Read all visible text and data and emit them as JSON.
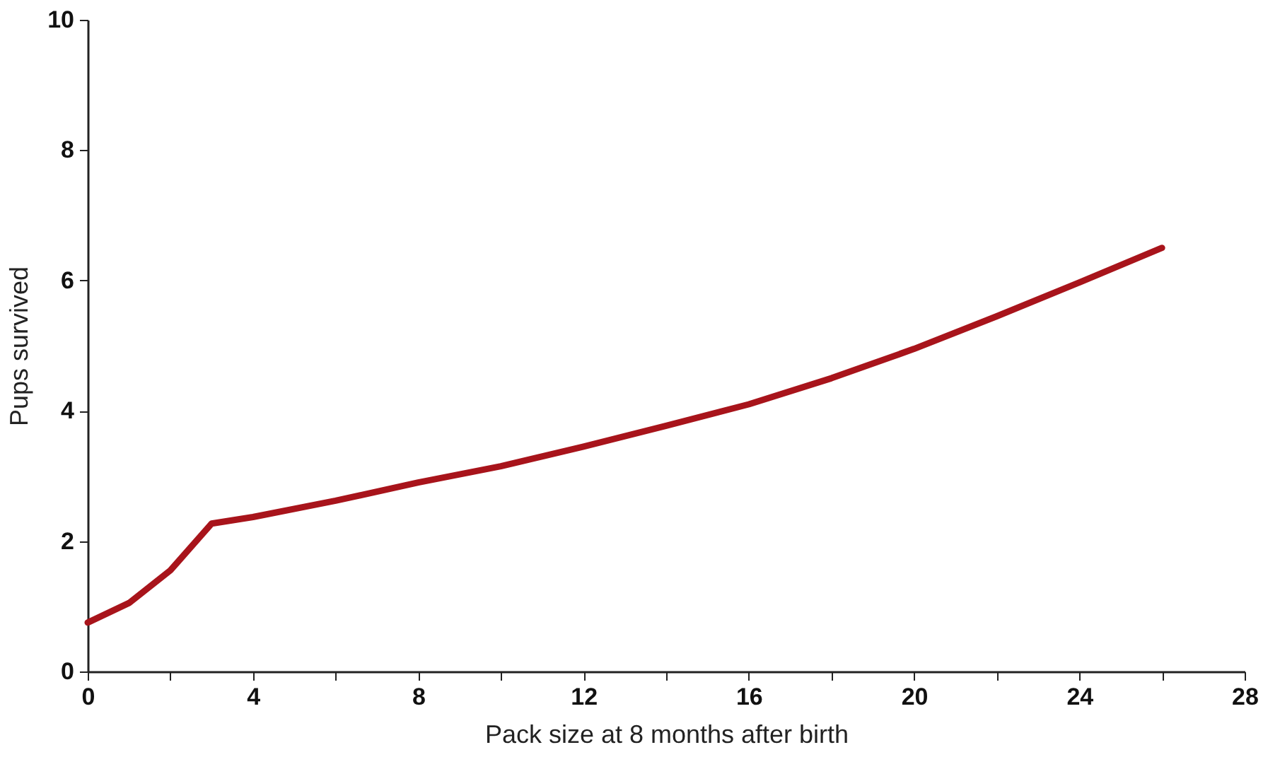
{
  "chart_data": {
    "type": "line",
    "xlabel": "Pack size at 8 months after birth",
    "ylabel": "Pups survived",
    "x": [
      0,
      1,
      2,
      3,
      4,
      6,
      8,
      10,
      12,
      14,
      16,
      18,
      20,
      22,
      24,
      26
    ],
    "series": [
      {
        "color": "#a8141b",
        "values": [
          0.75,
          1.05,
          1.55,
          2.27,
          2.37,
          2.62,
          2.9,
          3.15,
          3.45,
          3.77,
          4.1,
          4.5,
          4.95,
          5.45,
          5.97,
          6.5
        ]
      }
    ],
    "xlim": [
      0,
      28
    ],
    "ylim": [
      0,
      10
    ],
    "xticks": [
      0,
      {
        "value": 2,
        "label": null
      },
      4,
      {
        "value": 6,
        "label": null
      },
      8,
      {
        "value": 10,
        "label": null
      },
      12,
      {
        "value": 14,
        "label": null
      },
      16,
      {
        "value": 18,
        "label": null
      },
      20,
      {
        "value": 22,
        "label": null
      },
      24,
      {
        "value": 26,
        "label": null
      },
      28
    ],
    "yticks": [
      0,
      2,
      4,
      6,
      8,
      10
    ],
    "grid": false,
    "marker": "none",
    "line_style": "solid"
  }
}
